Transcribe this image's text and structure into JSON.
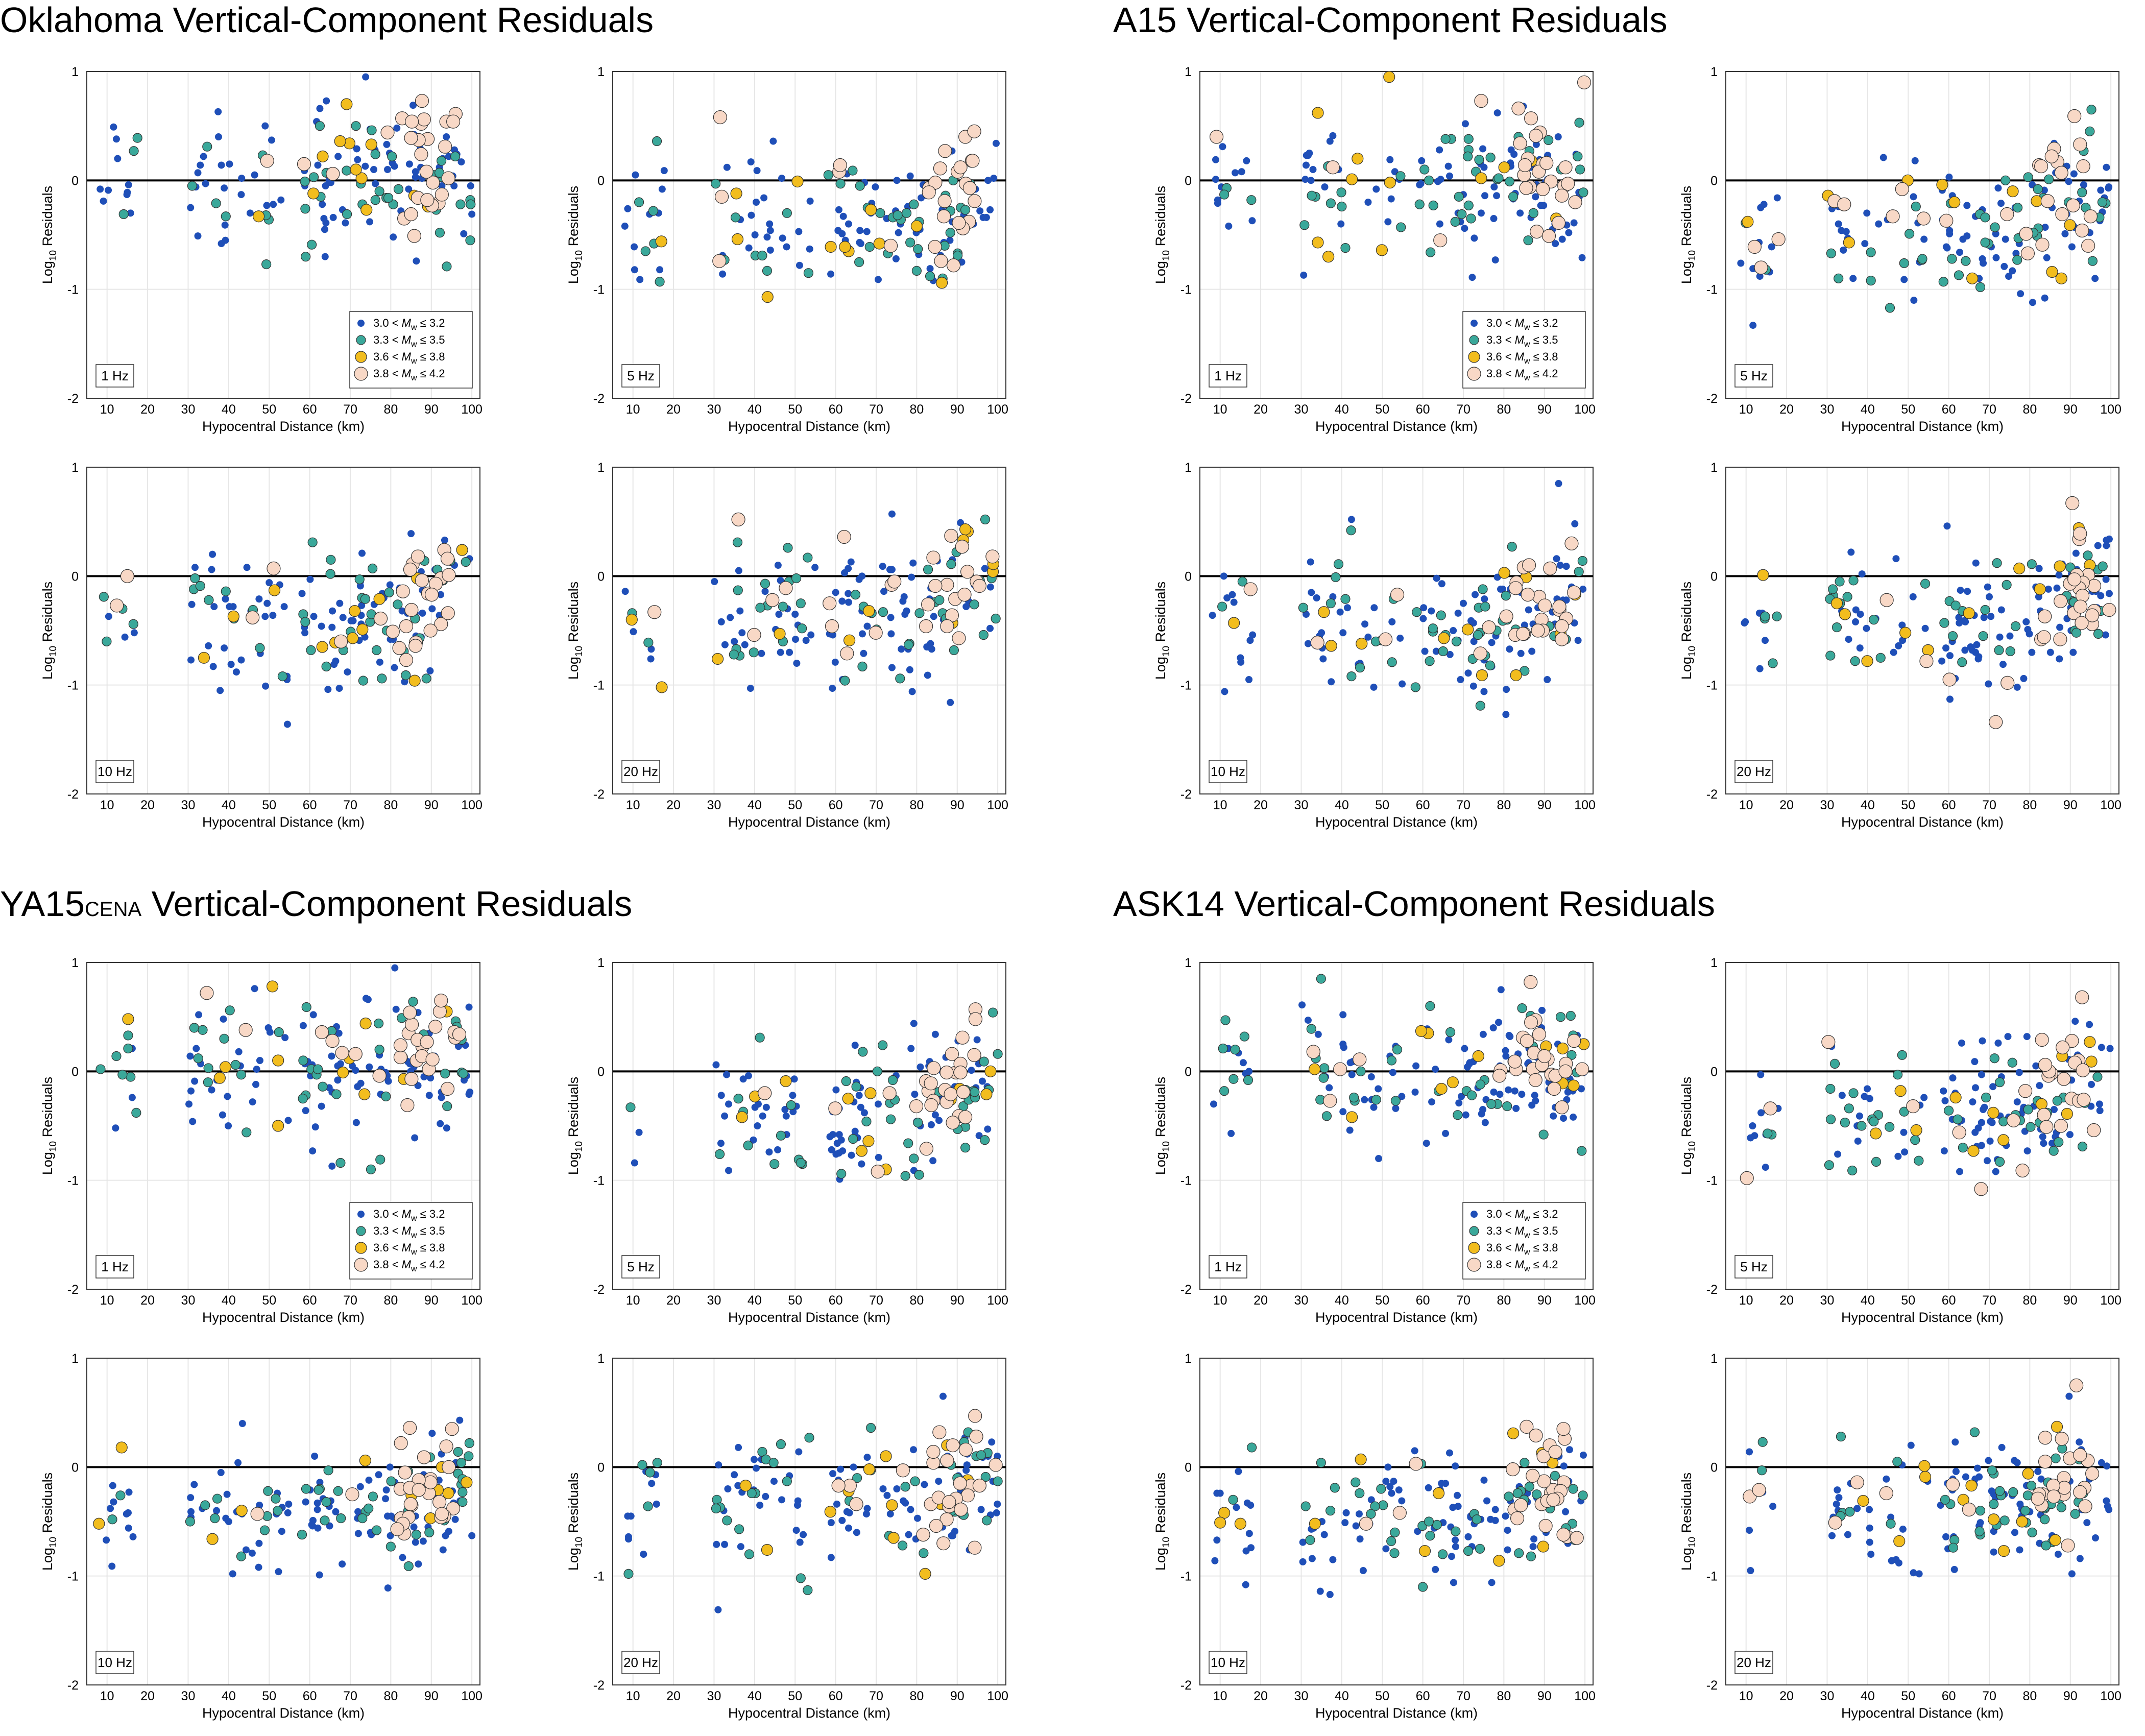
{
  "colors": {
    "bin1": "#1f4fb8",
    "bin2": "#3aa89a",
    "bin3": "#f2bd1e",
    "bin4": "#f8d8c6",
    "grid": "#e6e6e6",
    "zero_line": "#000000"
  },
  "panels": [
    {
      "title": "Oklahoma Vertical-Component Residuals",
      "subscript": "",
      "suffix": ""
    },
    {
      "title": "A15 Vertical-Component Residuals",
      "subscript": "",
      "suffix": ""
    },
    {
      "title": "YA15",
      "subscript": "CENA",
      "suffix": " Vertical-Component Residuals"
    },
    {
      "title": "ASK14 Vertical-Component Residuals",
      "subscript": "",
      "suffix": ""
    }
  ],
  "chart_data": {
    "type": "scatter",
    "xlabel": "Hypocentral Distance (km)",
    "ylabel_base": "Log",
    "ylabel_sub": "10",
    "ylabel_rest": " Residuals",
    "xlim": [
      5,
      102
    ],
    "ylim": [
      -2,
      1
    ],
    "xticks": [
      10,
      20,
      30,
      40,
      50,
      60,
      70,
      80,
      90,
      100
    ],
    "yticks": [
      -2,
      -1,
      0,
      1
    ],
    "grid": true,
    "zero_line": true,
    "frequencies": [
      "1 Hz",
      "5 Hz",
      "10 Hz",
      "20 Hz"
    ],
    "legend": {
      "placement": "bottom-right of 1 Hz subplot",
      "entries": [
        {
          "lo": "3.0",
          "hi": "3.2"
        },
        {
          "lo": "3.3",
          "hi": "3.5"
        },
        {
          "lo": "3.6",
          "hi": "3.8"
        },
        {
          "lo": "3.8",
          "hi": "4.2"
        }
      ],
      "sym_less": "<",
      "sym_leq": "≤",
      "mw_base": "M",
      "mw_sub": "w"
    },
    "series_names": [
      "3.0 < Mw ≤ 3.2",
      "3.3 < Mw ≤ 3.5",
      "3.6 < Mw ≤ 3.8",
      "3.8 < Mw ≤ 4.2"
    ]
  }
}
